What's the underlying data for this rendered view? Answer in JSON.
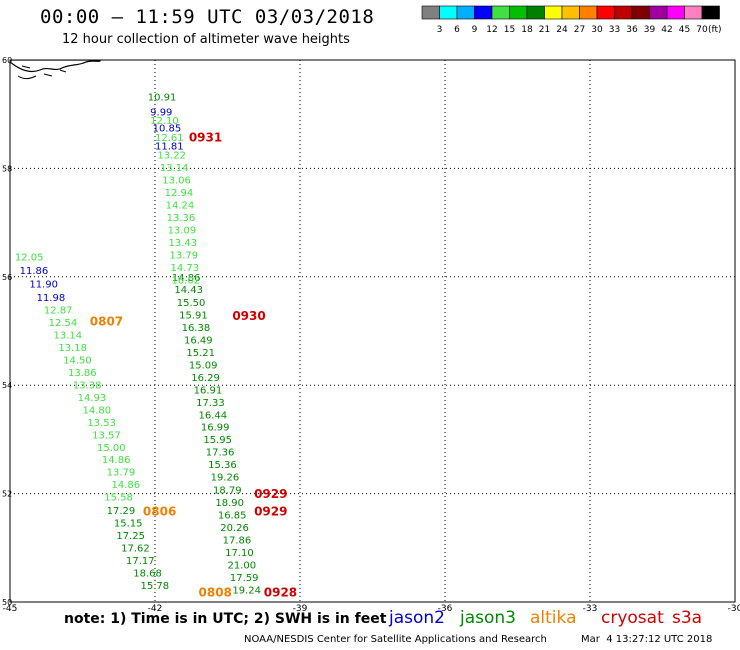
{
  "header": {
    "title": "00:00 – 11:59 UTC 03/03/2018",
    "subtitle": "12 hour collection of altimeter wave heights"
  },
  "colorbar": {
    "colors": [
      "#808080",
      "#00ffff",
      "#00b0ff",
      "#0000ff",
      "#40e040",
      "#00c000",
      "#008000",
      "#ffff00",
      "#ffc000",
      "#ff8000",
      "#ff0000",
      "#c00000",
      "#800000",
      "#a000a0",
      "#ff00ff",
      "#ff80c0",
      "#000000"
    ],
    "labels": [
      "3",
      "6",
      "9",
      "12",
      "15",
      "18",
      "21",
      "24",
      "27",
      "30",
      "33",
      "36",
      "39",
      "42",
      "45",
      "70"
    ],
    "unit": "(ft)"
  },
  "chart_data": {
    "type": "scatter",
    "x_ticks": [
      "-45",
      "-42",
      "-39",
      "-36",
      "-33",
      "-30"
    ],
    "y_ticks": [
      "50",
      "52",
      "54",
      "56",
      "58",
      "60"
    ],
    "xlim": [
      -45,
      -30
    ],
    "ylim": [
      50,
      60
    ],
    "colors": {
      "jason2": "#0000c8",
      "jason3": "#008800",
      "jason3_light": "#40e040",
      "altika": "#f08000",
      "cryosat": "#d00000"
    },
    "series": [
      {
        "name": "jason2",
        "color": "#0000c8",
        "points": [
          {
            "x": -42.1,
            "y": 58.98,
            "label": "9.99"
          },
          {
            "x": -42.05,
            "y": 58.68,
            "label": "10.85"
          },
          {
            "x": -42.0,
            "y": 58.35,
            "label": "11.81"
          },
          {
            "x": -44.8,
            "y": 56.05,
            "label": "11.86"
          },
          {
            "x": -44.6,
            "y": 55.8,
            "label": "11.90"
          },
          {
            "x": -44.45,
            "y": 55.55,
            "label": "11.98"
          }
        ]
      },
      {
        "name": "jason3",
        "color": "#008800",
        "points": [
          {
            "x": -42.15,
            "y": 59.25,
            "label": "10.91"
          },
          {
            "x": -41.65,
            "y": 55.92,
            "label": "14.86"
          },
          {
            "x": -41.6,
            "y": 55.7,
            "label": "14.43"
          },
          {
            "x": -41.55,
            "y": 55.46,
            "label": "15.50"
          },
          {
            "x": -41.5,
            "y": 55.23,
            "label": "15.91"
          },
          {
            "x": -41.45,
            "y": 55.0,
            "label": "16.38"
          },
          {
            "x": -41.4,
            "y": 54.77,
            "label": "16.49"
          },
          {
            "x": -41.35,
            "y": 54.54,
            "label": "15.21"
          },
          {
            "x": -41.3,
            "y": 54.31,
            "label": "15.09"
          },
          {
            "x": -41.25,
            "y": 54.08,
            "label": "16.29"
          },
          {
            "x": -41.2,
            "y": 53.85,
            "label": "16.91"
          },
          {
            "x": -41.15,
            "y": 53.62,
            "label": "17.33"
          },
          {
            "x": -41.1,
            "y": 53.39,
            "label": "16.44"
          },
          {
            "x": -41.05,
            "y": 53.16,
            "label": "16.99"
          },
          {
            "x": -41.0,
            "y": 52.93,
            "label": "15.95"
          },
          {
            "x": -40.95,
            "y": 52.7,
            "label": "17.36"
          },
          {
            "x": -40.9,
            "y": 52.47,
            "label": "15.36"
          },
          {
            "x": -40.85,
            "y": 52.24,
            "label": "19.26"
          },
          {
            "x": -40.8,
            "y": 52.0,
            "label": "18.79"
          },
          {
            "x": -40.75,
            "y": 51.77,
            "label": "18.90"
          },
          {
            "x": -40.7,
            "y": 51.54,
            "label": "16.85"
          },
          {
            "x": -40.65,
            "y": 51.31,
            "label": "20.26"
          },
          {
            "x": -40.6,
            "y": 51.08,
            "label": "17.86"
          },
          {
            "x": -40.55,
            "y": 50.85,
            "label": "17.10"
          },
          {
            "x": -40.5,
            "y": 50.62,
            "label": "21.00"
          },
          {
            "x": -40.45,
            "y": 50.39,
            "label": "17.59"
          },
          {
            "x": -40.4,
            "y": 50.16,
            "label": "19.24"
          },
          {
            "x": -43.0,
            "y": 51.62,
            "label": "17.29"
          },
          {
            "x": -42.85,
            "y": 51.39,
            "label": "15.15"
          },
          {
            "x": -42.8,
            "y": 51.16,
            "label": "17.25"
          },
          {
            "x": -42.7,
            "y": 50.93,
            "label": "17.62"
          },
          {
            "x": -42.6,
            "y": 50.7,
            "label": "17.17"
          },
          {
            "x": -42.45,
            "y": 50.47,
            "label": "18.68"
          },
          {
            "x": -42.3,
            "y": 50.24,
            "label": "15.78"
          }
        ]
      },
      {
        "name": "jason3_light",
        "color": "#40e040",
        "points": [
          {
            "x": -42.1,
            "y": 58.82,
            "label": "12.10"
          },
          {
            "x": -42.0,
            "y": 58.51,
            "label": "12.61"
          },
          {
            "x": -41.95,
            "y": 58.18,
            "label": "13.22"
          },
          {
            "x": -41.9,
            "y": 57.95,
            "label": "13.14"
          },
          {
            "x": -41.85,
            "y": 57.72,
            "label": "13.06"
          },
          {
            "x": -41.8,
            "y": 57.49,
            "label": "12.94"
          },
          {
            "x": -41.78,
            "y": 57.26,
            "label": "14.24"
          },
          {
            "x": -41.76,
            "y": 57.03,
            "label": "13.36"
          },
          {
            "x": -41.74,
            "y": 56.8,
            "label": "13.09"
          },
          {
            "x": -41.72,
            "y": 56.57,
            "label": "13.43"
          },
          {
            "x": -41.7,
            "y": 56.34,
            "label": "13.79"
          },
          {
            "x": -41.68,
            "y": 56.11,
            "label": "14.73"
          },
          {
            "x": -41.66,
            "y": 55.88,
            "label": "16.02"
          },
          {
            "x": -44.9,
            "y": 56.3,
            "label": "12.05"
          },
          {
            "x": -44.3,
            "y": 55.32,
            "label": "12.87"
          },
          {
            "x": -44.2,
            "y": 55.09,
            "label": "12.54"
          },
          {
            "x": -44.1,
            "y": 54.86,
            "label": "13.14"
          },
          {
            "x": -44.0,
            "y": 54.63,
            "label": "13.18"
          },
          {
            "x": -43.9,
            "y": 54.4,
            "label": "14.50"
          },
          {
            "x": -43.8,
            "y": 54.17,
            "label": "13.86"
          },
          {
            "x": -43.7,
            "y": 53.94,
            "label": "13.38"
          },
          {
            "x": -43.6,
            "y": 53.71,
            "label": "14.93"
          },
          {
            "x": -43.5,
            "y": 53.48,
            "label": "14.80"
          },
          {
            "x": -43.4,
            "y": 53.25,
            "label": "13.53"
          },
          {
            "x": -43.3,
            "y": 53.02,
            "label": "13.57"
          },
          {
            "x": -43.2,
            "y": 52.79,
            "label": "15.00"
          },
          {
            "x": -43.1,
            "y": 52.56,
            "label": "14.86"
          },
          {
            "x": -43.0,
            "y": 52.33,
            "label": "13.79"
          },
          {
            "x": -42.9,
            "y": 52.1,
            "label": "14.86"
          },
          {
            "x": -43.05,
            "y": 51.87,
            "label": "15.58"
          }
        ]
      },
      {
        "name": "altika",
        "color": "#f08000",
        "points": []
      },
      {
        "name": "cryosat",
        "color": "#d00000",
        "points": []
      }
    ],
    "annotations": [
      {
        "text": "0931",
        "x": -41.3,
        "y": 58.5,
        "color": "#d00000"
      },
      {
        "text": "0930",
        "x": -40.4,
        "y": 55.2,
        "color": "#d00000"
      },
      {
        "text": "0807",
        "x": -43.35,
        "y": 55.1,
        "color": "#f08000"
      },
      {
        "text": "0806",
        "x": -42.25,
        "y": 51.6,
        "color": "#f08000"
      },
      {
        "text": "0929",
        "x": -39.95,
        "y": 51.92,
        "color": "#d00000"
      },
      {
        "text": "0929",
        "x": -39.95,
        "y": 51.6,
        "color": "#d00000"
      },
      {
        "text": "0808",
        "x": -41.1,
        "y": 50.1,
        "color": "#f08000"
      },
      {
        "text": "0928",
        "x": -39.75,
        "y": 50.1,
        "color": "#d00000"
      }
    ]
  },
  "footer": {
    "note": "note: 1) Time is in UTC; 2) SWH is in feet",
    "legend": [
      {
        "label": "jason2",
        "color": "#0000c8"
      },
      {
        "label": "jason3",
        "color": "#008800"
      },
      {
        "label": "altika",
        "color": "#f08000"
      },
      {
        "label": "cryosat",
        "color": "#d00000"
      },
      {
        "label": "s3a",
        "color": "#d00000"
      }
    ],
    "credit": "NOAA/NESDIS Center for Satellite Applications and Research",
    "timestamp": "Mar  4 13:27:12 UTC 2018"
  }
}
